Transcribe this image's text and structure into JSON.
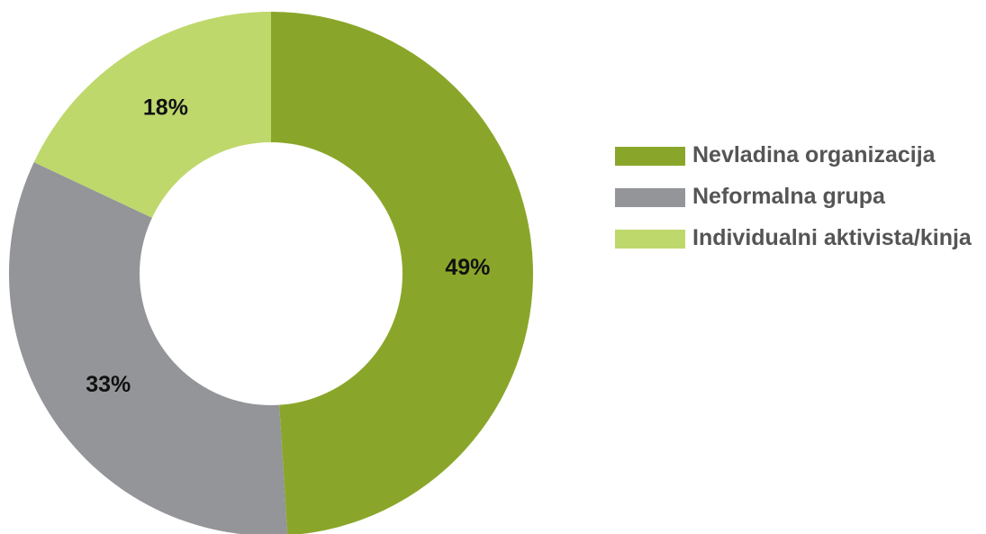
{
  "chart_data": {
    "type": "pie",
    "donut": true,
    "categories": [
      "Nevladina organizacija",
      "Neformalna grupa",
      "Individualni aktivista/kinja"
    ],
    "values": [
      49,
      33,
      18
    ],
    "value_labels": [
      "49%",
      "33%",
      "18%"
    ],
    "colors": [
      "#8aa62a",
      "#939598",
      "#bed86c"
    ],
    "title": "",
    "legend_position": "right"
  },
  "legend": {
    "items": [
      {
        "label": "Nevladina organizacija",
        "color": "#8aa62a"
      },
      {
        "label": "Neformalna grupa",
        "color": "#939598"
      },
      {
        "label": "Individualni aktivista/kinja",
        "color": "#bed86c"
      }
    ]
  }
}
